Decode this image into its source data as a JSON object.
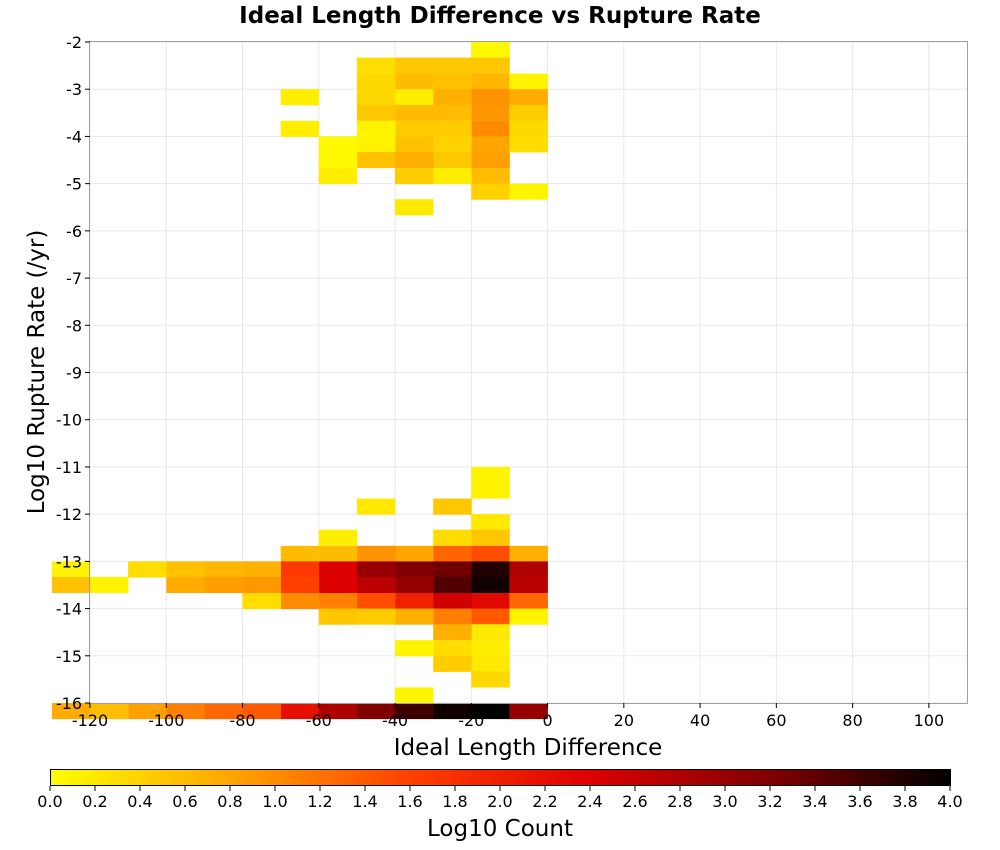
{
  "chart_data": {
    "type": "heatmap",
    "title": "Ideal Length Difference vs Rupture Rate",
    "xlabel": "Ideal Length Difference",
    "ylabel": "Log10 Rupture Rate (/yr)",
    "colorbar_label": "Log10 Count",
    "xlim": [
      -120,
      110
    ],
    "ylim": [
      -16,
      -2
    ],
    "x_ticks": [
      -120,
      -100,
      -80,
      -60,
      -40,
      -20,
      0,
      20,
      40,
      60,
      80,
      100
    ],
    "y_ticks": [
      -16,
      -15,
      -14,
      -13,
      -12,
      -11,
      -10,
      -9,
      -8,
      -7,
      -6,
      -5,
      -4,
      -3,
      -2
    ],
    "colorbar_range": [
      0,
      4
    ],
    "colorbar_ticks": [
      "0.0",
      "0.2",
      "0.4",
      "0.6",
      "0.8",
      "1.0",
      "1.2",
      "1.4",
      "1.6",
      "1.8",
      "2.0",
      "2.2",
      "2.4",
      "2.6",
      "2.8",
      "3.0",
      "3.2",
      "3.4",
      "3.6",
      "3.8",
      "4.0"
    ],
    "colormap": [
      "#ffff00",
      "#ffa500",
      "#ff4000",
      "#dd0000",
      "#800000",
      "#000000"
    ],
    "grid": true,
    "bin_width_x": 10,
    "bin_height_y": 0.333,
    "cells": [
      [
        -10,
        -2.0,
        0.05
      ],
      [
        -10,
        -2.33,
        0.5
      ],
      [
        -10,
        -2.67,
        0.65
      ],
      [
        -10,
        -3.0,
        0.95
      ],
      [
        -10,
        -3.33,
        0.9
      ],
      [
        -10,
        -3.67,
        1.0
      ],
      [
        -10,
        -4.0,
        0.8
      ],
      [
        -10,
        -4.33,
        0.85
      ],
      [
        -10,
        -4.67,
        0.6
      ],
      [
        -10,
        -5.0,
        0.4
      ],
      [
        0,
        -2.67,
        0.1
      ],
      [
        0,
        -3.0,
        0.75
      ],
      [
        0,
        -3.33,
        0.45
      ],
      [
        0,
        -3.67,
        0.35
      ],
      [
        0,
        -4.0,
        0.3
      ],
      [
        0,
        -5.0,
        0.1
      ],
      [
        -20,
        -2.33,
        0.5
      ],
      [
        -20,
        -2.67,
        0.55
      ],
      [
        -20,
        -3.0,
        0.7
      ],
      [
        -20,
        -3.33,
        0.6
      ],
      [
        -20,
        -3.67,
        0.45
      ],
      [
        -20,
        -4.0,
        0.4
      ],
      [
        -20,
        -4.33,
        0.5
      ],
      [
        -20,
        -4.67,
        0.15
      ],
      [
        -30,
        -2.33,
        0.5
      ],
      [
        -30,
        -2.67,
        0.6
      ],
      [
        -30,
        -3.0,
        0.15
      ],
      [
        -30,
        -3.33,
        0.6
      ],
      [
        -30,
        -3.67,
        0.45
      ],
      [
        -30,
        -4.0,
        0.55
      ],
      [
        -30,
        -4.33,
        0.7
      ],
      [
        -30,
        -4.67,
        0.45
      ],
      [
        -30,
        -5.33,
        0.2
      ],
      [
        -40,
        -2.33,
        0.3
      ],
      [
        -40,
        -2.67,
        0.35
      ],
      [
        -40,
        -3.0,
        0.35
      ],
      [
        -40,
        -3.33,
        0.5
      ],
      [
        -40,
        -3.67,
        0.1
      ],
      [
        -40,
        -4.0,
        0.1
      ],
      [
        -40,
        -4.33,
        0.55
      ],
      [
        -50,
        -4.0,
        0.05
      ],
      [
        -50,
        -4.33,
        0.05
      ],
      [
        -50,
        -4.67,
        0.15
      ],
      [
        -60,
        -3.0,
        0.15
      ],
      [
        -60,
        -3.67,
        0.15
      ],
      [
        -10,
        -11.0,
        0.1
      ],
      [
        -10,
        -11.33,
        0.1
      ],
      [
        -10,
        -12.0,
        0.2
      ],
      [
        -10,
        -12.33,
        0.5
      ],
      [
        -10,
        -12.67,
        1.5
      ],
      [
        -10,
        -13.0,
        3.8
      ],
      [
        -10,
        -13.33,
        3.9
      ],
      [
        -10,
        -13.67,
        2.3
      ],
      [
        -10,
        -14.0,
        1.4
      ],
      [
        -10,
        -14.33,
        0.2
      ],
      [
        -10,
        -14.67,
        0.15
      ],
      [
        -10,
        -15.0,
        0.2
      ],
      [
        -10,
        -15.33,
        0.35
      ],
      [
        -10,
        -16.0,
        4.0
      ],
      [
        0,
        -12.67,
        0.7
      ],
      [
        0,
        -13.0,
        2.8
      ],
      [
        0,
        -13.33,
        2.7
      ],
      [
        0,
        -13.67,
        1.3
      ],
      [
        0,
        -14.0,
        0.1
      ],
      [
        0,
        -16.0,
        3.0
      ],
      [
        -20,
        -11.67,
        0.5
      ],
      [
        -20,
        -12.33,
        0.3
      ],
      [
        -20,
        -12.67,
        1.3
      ],
      [
        -20,
        -13.0,
        3.3
      ],
      [
        -20,
        -13.33,
        3.5
      ],
      [
        -20,
        -13.67,
        2.5
      ],
      [
        -20,
        -14.0,
        1.1
      ],
      [
        -20,
        -14.33,
        0.7
      ],
      [
        -20,
        -14.67,
        0.3
      ],
      [
        -20,
        -15.0,
        0.45
      ],
      [
        -20,
        -16.0,
        3.9
      ],
      [
        -30,
        -12.67,
        0.8
      ],
      [
        -30,
        -13.0,
        3.2
      ],
      [
        -30,
        -13.33,
        3.0
      ],
      [
        -30,
        -13.67,
        2.0
      ],
      [
        -30,
        -14.0,
        0.7
      ],
      [
        -30,
        -14.67,
        0.1
      ],
      [
        -30,
        -15.67,
        0.1
      ],
      [
        -30,
        -16.0,
        3.6
      ],
      [
        -40,
        -11.67,
        0.2
      ],
      [
        -40,
        -12.67,
        0.95
      ],
      [
        -40,
        -13.0,
        3.0
      ],
      [
        -40,
        -13.33,
        2.7
      ],
      [
        -40,
        -13.67,
        1.5
      ],
      [
        -40,
        -14.0,
        0.45
      ],
      [
        -40,
        -16.0,
        3.2
      ],
      [
        -50,
        -12.33,
        0.15
      ],
      [
        -50,
        -12.67,
        0.6
      ],
      [
        -50,
        -13.0,
        2.4
      ],
      [
        -50,
        -13.33,
        2.4
      ],
      [
        -50,
        -13.67,
        1.1
      ],
      [
        -50,
        -14.0,
        0.5
      ],
      [
        -50,
        -16.0,
        2.8
      ],
      [
        -60,
        -12.67,
        0.6
      ],
      [
        -60,
        -13.0,
        1.7
      ],
      [
        -60,
        -13.33,
        1.6
      ],
      [
        -60,
        -13.67,
        1.0
      ],
      [
        -60,
        -16.0,
        2.2
      ],
      [
        -70,
        -13.0,
        0.7
      ],
      [
        -70,
        -13.33,
        0.9
      ],
      [
        -70,
        -13.67,
        0.3
      ],
      [
        -70,
        -16.0,
        1.4
      ],
      [
        -80,
        -13.0,
        0.65
      ],
      [
        -80,
        -13.33,
        0.85
      ],
      [
        -80,
        -16.0,
        1.3
      ],
      [
        -90,
        -13.0,
        0.55
      ],
      [
        -90,
        -13.33,
        0.75
      ],
      [
        -90,
        -16.0,
        1.1
      ],
      [
        -100,
        -13.0,
        0.3
      ],
      [
        -100,
        -16.0,
        0.85
      ],
      [
        -110,
        -13.33,
        0.1
      ],
      [
        -110,
        -16.0,
        0.6
      ],
      [
        -120,
        -13.0,
        0.1
      ],
      [
        -120,
        -13.33,
        0.55
      ],
      [
        -120,
        -16.0,
        0.75
      ]
    ]
  }
}
